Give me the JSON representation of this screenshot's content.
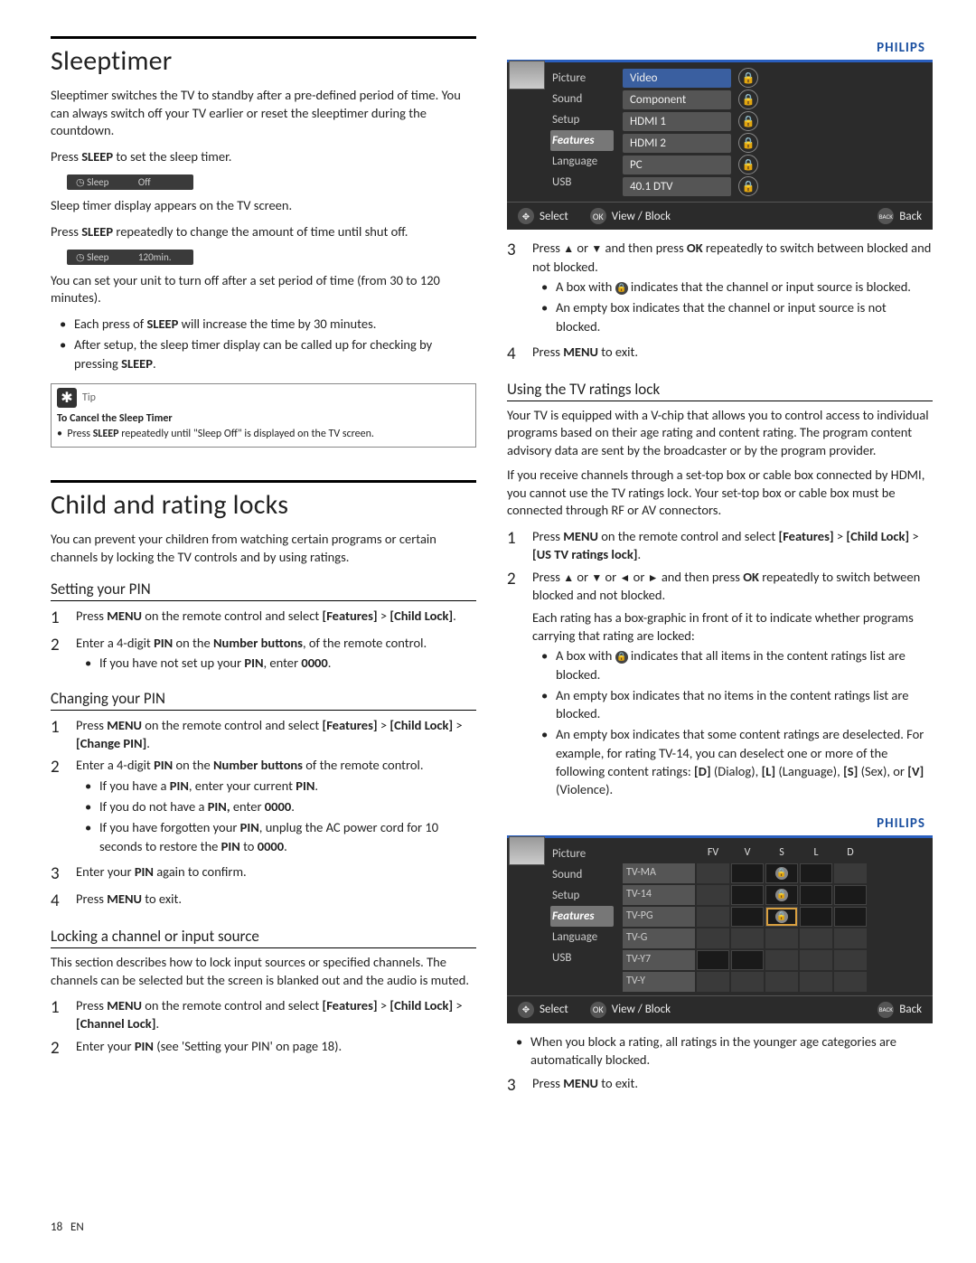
{
  "page": {
    "num": "18",
    "lang": "EN"
  },
  "sleeptimer": {
    "title": "Sleeptimer",
    "intro": "Sleeptimer switches the TV to standby after a pre-defined period of time. You can always switch off your TV earlier or reset the sleeptimer during the countdown.",
    "p1_a": "Press ",
    "p1_b": "SLEEP",
    "p1_c": " to set the sleep timer.",
    "pill1_label": "Sleep",
    "pill1_val": "Off",
    "p2": "Sleep timer display appears on the TV screen.",
    "p3_a": "Press ",
    "p3_b": "SLEEP",
    "p3_c": " repeatedly to change the amount of time until shut off.",
    "pill2_label": "Sleep",
    "pill2_val": "120min.",
    "p4": "You can set your unit to turn off after a set period of time (from 30 to 120 minutes).",
    "b1_a": "Each press of ",
    "b1_b": "SLEEP",
    "b1_c": " will increase the time by 30 minutes.",
    "b2_a": "After setup, the sleep timer display can be called up for checking by pressing ",
    "b2_b": "SLEEP",
    "b2_c": ".",
    "tip_label": "Tip",
    "tip_title": "To Cancel the Sleep Timer",
    "tip_body_a": "Press ",
    "tip_body_b": "SLEEP",
    "tip_body_c": " repeatedly until \"Sleep Off\" is displayed on the TV screen."
  },
  "childlock": {
    "title": "Child and rating locks",
    "intro": "You can prevent your children from watching certain programs or certain channels by locking the TV controls and by using ratings.",
    "setpin": {
      "h": "Setting your PIN",
      "s1_a": "Press ",
      "s1_b": "MENU",
      "s1_c": " on the remote control and select ",
      "s1_d": "[Features]",
      "s1_e": " > ",
      "s1_f": "[Child Lock]",
      "s1_g": ".",
      "s2_a": "Enter a 4-digit ",
      "s2_b": "PIN",
      "s2_c": " on the ",
      "s2_d": "Number buttons",
      "s2_e": ", of the remote control.",
      "s2_bul_a": "If you have not set up your ",
      "s2_bul_b": "PIN",
      "s2_bul_c": ", enter ",
      "s2_bul_d": "0000",
      "s2_bul_e": "."
    },
    "chpin": {
      "h": "Changing your PIN",
      "s1_a": "Press ",
      "s1_b": "MENU",
      "s1_c": " on the remote control and select ",
      "s1_d": "[Features]",
      "s1_e": " > ",
      "s1_f": "[Child Lock]",
      "s1_g": " > ",
      "s1_h": "[Change PIN]",
      "s1_i": ".",
      "s2_a": "Enter a 4-digit ",
      "s2_b": "PIN",
      "s2_c": " on the ",
      "s2_d": "Number buttons",
      "s2_e": " of the remote control.",
      "b1_a": "If you have a ",
      "b1_b": "PIN",
      "b1_c": ", enter your current ",
      "b1_d": "PIN",
      "b1_e": ".",
      "b2_a": "If you do not have a ",
      "b2_b": "PIN,",
      "b2_c": " enter ",
      "b2_d": "0000",
      "b2_e": ".",
      "b3_a": "If you have forgotten your ",
      "b3_b": "PIN",
      "b3_c": ", unplug the AC power cord for 10 seconds to restore the ",
      "b3_d": "PIN",
      "b3_e": " to ",
      "b3_f": "0000",
      "b3_g": ".",
      "s3_a": "Enter your ",
      "s3_b": "PIN",
      "s3_c": " again to confirm.",
      "s4_a": "Press ",
      "s4_b": "MENU",
      "s4_c": " to exit."
    },
    "lockch": {
      "h": "Locking a channel or input source",
      "intro": "This section describes how to lock input sources or specified channels. The channels can be selected but the screen is blanked out and the audio is muted.",
      "s1_a": "Press ",
      "s1_b": "MENU",
      "s1_c": " on the remote control and select ",
      "s1_d": "[Features]",
      "s1_e": " > ",
      "s1_f": "[Child Lock]",
      "s1_g": " > ",
      "s1_h": "[Channel Lock]",
      "s1_i": ".",
      "s2_a": "Enter your ",
      "s2_b": "PIN",
      "s2_c": " (see 'Setting your PIN' on page 18)."
    }
  },
  "osd1": {
    "brand": "PHILIPS",
    "menu": [
      "Picture",
      "Sound",
      "Setup",
      "Features",
      "Language",
      "USB"
    ],
    "active_idx": 3,
    "sources": [
      "Video",
      "Component",
      "HDMI 1",
      "HDMI 2",
      "PC",
      "40.1 DTV"
    ],
    "src_active_idx": 0,
    "footer": {
      "select": "Select",
      "view": "View / Block",
      "back": "Back",
      "back_sup": "BACK"
    }
  },
  "right_steps": {
    "s3_a": "Press ",
    "s3_b": "▲",
    "s3_c": " or ",
    "s3_d": "▼",
    "s3_e": " and then press ",
    "s3_f": "OK",
    "s3_g": " repeatedly to switch between blocked and not blocked.",
    "b1_a": "A box with ",
    "b1_b": " indicates that the channel or input source is blocked.",
    "b2": "An empty box indicates that the channel or input source is not blocked.",
    "s4_a": "Press ",
    "s4_b": "MENU",
    "s4_c": " to exit."
  },
  "tvrating": {
    "h": "Using the TV ratings lock",
    "p1": "Your TV is equipped with a V-chip that allows you to control access to individual programs based on their age rating and content rating. The program content advisory data are sent by the broadcaster or by the program provider.",
    "p2": "If you receive channels through a set-top box or cable box connected by HDMI, you cannot use the TV ratings lock. Your set-top box or cable box must be connected through RF or AV connectors.",
    "s1_a": "Press ",
    "s1_b": "MENU",
    "s1_c": " on the remote control and select ",
    "s1_d": "[Features]",
    "s1_e": " > ",
    "s1_f": "[Child Lock]",
    "s1_g": " > ",
    "s1_h": "[US TV ratings lock]",
    "s1_i": ".",
    "s2_a": "Press ",
    "s2_b": "▲",
    "s2_c": " or ",
    "s2_d": "▼",
    "s2_e": " or ",
    "s2_f": "◄",
    "s2_g": " or ",
    "s2_h": "►",
    "s2_i": " and then press ",
    "s2_j": "OK",
    "s2_k": " repeatedly to switch between blocked and not blocked.",
    "s2_p": "Each rating has a box-graphic in front of it to indicate whether programs carrying that rating are locked:",
    "b1_a": "A box with ",
    "b1_b": " indicates that all items in the content ratings list are blocked.",
    "b2": "An empty box indicates that no items in the content ratings list are blocked.",
    "b3_a": "An empty box indicates that some content ratings are deselected. For example, for rating TV-14, you can deselect one or more of the following content ratings: ",
    "b3_b": "[D]",
    "b3_c": " (Dialog), ",
    "b3_d": "[L]",
    "b3_e": " (Language), ",
    "b3_f": "[S]",
    "b3_g": " (Sex), or ",
    "b3_h": "[V]",
    "b3_i": " (Violence).",
    "after_b": "When you block a rating, all ratings in the younger age categories are automatically blocked.",
    "s3_a": "Press ",
    "s3_b": "MENU",
    "s3_c": " to exit."
  },
  "osd2": {
    "brand": "PHILIPS",
    "menu": [
      "Picture",
      "Sound",
      "Setup",
      "Features",
      "Language",
      "USB"
    ],
    "active_idx": 3,
    "cols": [
      "FV",
      "V",
      "S",
      "L",
      "D"
    ],
    "rows": [
      "TV-MA",
      "TV-14",
      "TV-PG",
      "TV-G",
      "TV-Y7",
      "TV-Y"
    ],
    "locks": [
      [
        2
      ],
      [
        2
      ]
    ],
    "hl": [
      2,
      2
    ],
    "footer": {
      "select": "Select",
      "view": "View / Block",
      "back": "Back",
      "back_sup": "BACK"
    }
  },
  "colors": {
    "brand_blue": "#1a4fa0",
    "osd_bg": "#2b2b2b",
    "osd_menu_active": "#777777",
    "src_active": "#3a5fa0",
    "hl_border": "#d9a040"
  }
}
